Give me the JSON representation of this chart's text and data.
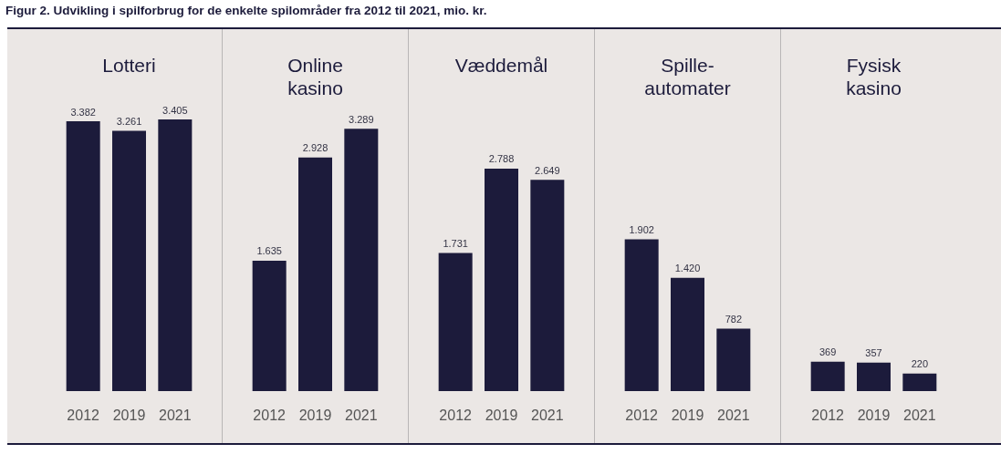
{
  "chart_data": [
    {
      "type": "bar",
      "title": "Lotteri",
      "annotations": [
        "Figur 2. Udvikling i spilforbrug for de enkelte spilområder fra 2012 til 2021, mio. kr."
      ],
      "categories": [
        "2012",
        "2019",
        "2021"
      ],
      "values": [
        3382,
        3261,
        3405
      ],
      "value_labels": [
        "3.382",
        "3.261",
        "3.405"
      ],
      "color": "#1c1b3b"
    },
    {
      "type": "bar",
      "title": "Online kasino",
      "categories": [
        "2012",
        "2019",
        "2021"
      ],
      "values": [
        1635,
        2928,
        3289
      ],
      "value_labels": [
        "1.635",
        "2.928",
        "3.289"
      ],
      "color": "#1c1b3b"
    },
    {
      "type": "bar",
      "title": "Væddemål",
      "categories": [
        "2012",
        "2019",
        "2021"
      ],
      "values": [
        1731,
        2788,
        2649
      ],
      "value_labels": [
        "1.731",
        "2.788",
        "2.649"
      ],
      "color": "#1c1b3b"
    },
    {
      "type": "bar",
      "title": "Spille-automater",
      "categories": [
        "2012",
        "2019",
        "2021"
      ],
      "values": [
        1902,
        1420,
        782
      ],
      "value_labels": [
        "1.902",
        "1.420",
        "782"
      ],
      "color": "#1c1b3b"
    },
    {
      "type": "bar",
      "title": "Fysisk kasino",
      "categories": [
        "2012",
        "2019",
        "2021"
      ],
      "values": [
        369,
        357,
        220
      ],
      "value_labels": [
        "369",
        "357",
        "220"
      ],
      "color": "#1c1b3b"
    }
  ]
}
